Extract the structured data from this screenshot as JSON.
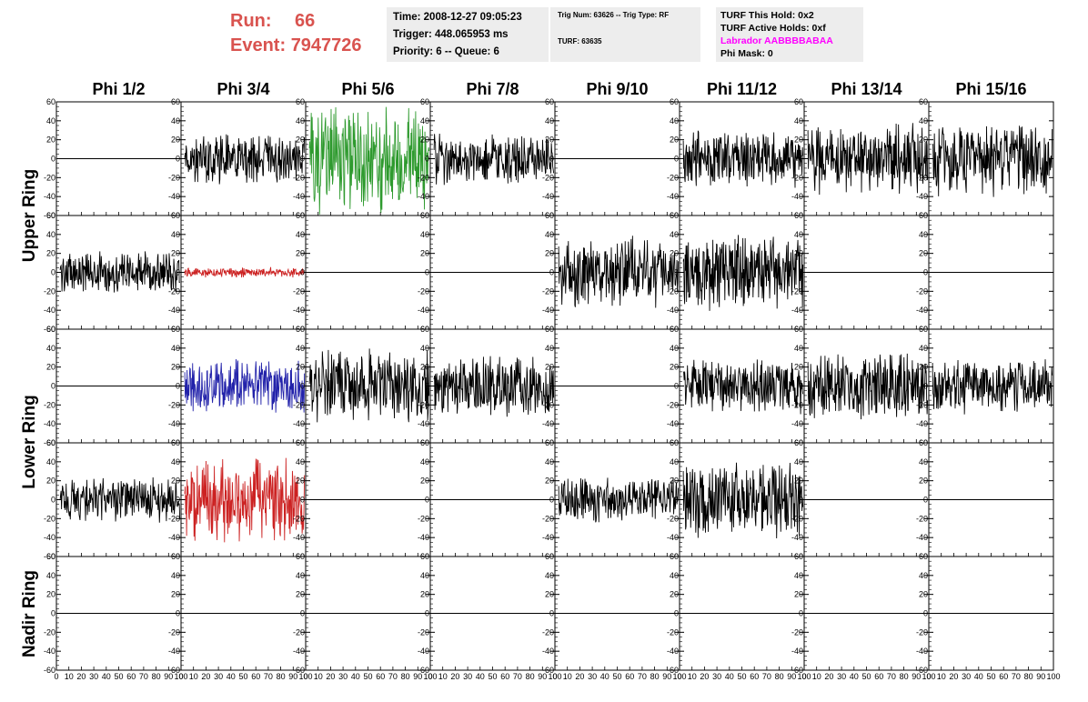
{
  "run": {
    "run_label": "Run:",
    "run_value": "66",
    "event_label": "Event:",
    "event_value": "7947726"
  },
  "time_box": {
    "line1": "Time: 2008-12-27 09:05:23",
    "line2": "Trigger: 448.065953 ms",
    "line3": "Priority: 6 -- Queue: 6"
  },
  "trig_box": {
    "line1": "Trig Num: 63626 -- Trig Type: RF",
    "line2": "TURF: 63635"
  },
  "turf_box": {
    "line1": "TURF This Hold: 0x2",
    "line2": "TURF Active Holds: 0xf",
    "line3": "Labrador AABBBBABAA",
    "line4": "Phi Mask: 0"
  },
  "colors": {
    "run_text": "#d9534f",
    "labrador": "#ff00ff"
  },
  "columns": [
    "Phi 1/2",
    "Phi 3/4",
    "Phi 5/6",
    "Phi 7/8",
    "Phi 9/10",
    "Phi 11/12",
    "Phi 13/14",
    "Phi 15/16"
  ],
  "row_groups": [
    "Upper Ring",
    "Lower Ring",
    "Nadir Ring"
  ],
  "chart_data": {
    "type": "line",
    "title": "",
    "x_range": [
      0,
      100
    ],
    "y_range": [
      -60,
      60
    ],
    "y_tick_labels": [
      "60",
      "40",
      "20",
      "0",
      "-20",
      "-40",
      "-60"
    ],
    "x_tick_labels": [
      "0",
      "10",
      "20",
      "30",
      "40",
      "50",
      "60",
      "70",
      "80",
      "90",
      "100"
    ],
    "x_axis_note": "x tick labels printed only along the bottom edge",
    "panel_rows": 5,
    "panel_cols": 8,
    "panels": [
      [
        {
          "amp": 0,
          "color": "#000000"
        },
        {
          "amp": 20,
          "color": "#000000"
        },
        {
          "amp": 45,
          "color": "#2e9a2e"
        },
        {
          "amp": 20,
          "color": "#000000"
        },
        {
          "amp": 0,
          "color": "#000000"
        },
        {
          "amp": 22,
          "color": "#000000"
        },
        {
          "amp": 28,
          "color": "#000000"
        },
        {
          "amp": 30,
          "color": "#000000"
        }
      ],
      [
        {
          "amp": 17,
          "color": "#000000"
        },
        {
          "amp": 4,
          "color": "#cc2222"
        },
        {
          "amp": 0,
          "color": "#000000"
        },
        {
          "amp": 0,
          "color": "#000000"
        },
        {
          "amp": 28,
          "color": "#000000"
        },
        {
          "amp": 30,
          "color": "#000000"
        },
        {
          "amp": 0,
          "color": "#000000"
        },
        {
          "amp": 0,
          "color": "#000000"
        }
      ],
      [
        {
          "amp": 0,
          "color": "#000000"
        },
        {
          "amp": 22,
          "color": "#2222aa"
        },
        {
          "amp": 30,
          "color": "#000000"
        },
        {
          "amp": 25,
          "color": "#000000"
        },
        {
          "amp": 0,
          "color": "#000000"
        },
        {
          "amp": 22,
          "color": "#000000"
        },
        {
          "amp": 28,
          "color": "#000000"
        },
        {
          "amp": 22,
          "color": "#000000"
        }
      ],
      [
        {
          "amp": 18,
          "color": "#000000"
        },
        {
          "amp": 35,
          "color": "#cc2222"
        },
        {
          "amp": 0,
          "color": "#000000"
        },
        {
          "amp": 0,
          "color": "#000000"
        },
        {
          "amp": 18,
          "color": "#000000"
        },
        {
          "amp": 30,
          "color": "#000000"
        },
        {
          "amp": 0,
          "color": "#000000"
        },
        {
          "amp": 0,
          "color": "#000000"
        }
      ],
      [
        {
          "amp": 0,
          "color": "#000000"
        },
        {
          "amp": 0,
          "color": "#000000"
        },
        {
          "amp": 0,
          "color": "#000000"
        },
        {
          "amp": 0,
          "color": "#000000"
        },
        {
          "amp": 0,
          "color": "#000000"
        },
        {
          "amp": 0,
          "color": "#000000"
        },
        {
          "amp": 0,
          "color": "#000000"
        },
        {
          "amp": 0,
          "color": "#000000"
        }
      ]
    ]
  }
}
